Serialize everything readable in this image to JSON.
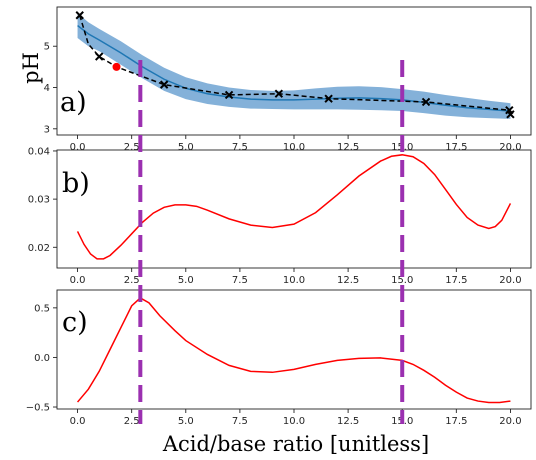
{
  "chart_data": [
    {
      "type": "line",
      "panel_label": "a)",
      "ylabel": "pH",
      "xlim": [
        -0.95,
        20.95
      ],
      "ylim": [
        2.85,
        5.95
      ],
      "xticks": [
        0.0,
        2.5,
        5.0,
        7.5,
        10.0,
        12.5,
        15.0,
        17.5,
        20.0
      ],
      "xtick_labels": [
        "0.0",
        "2.5",
        "5.0",
        "7.5",
        "10.0",
        "12.5",
        "15.0",
        "17.5",
        "20.0"
      ],
      "yticks": [
        3,
        4,
        5
      ],
      "ytick_labels": [
        "3",
        "4",
        "5"
      ],
      "series": [
        {
          "kind": "band",
          "color": "#6ea3d2",
          "x": [
            0.0,
            0.5,
            1,
            2,
            3,
            4,
            5,
            6,
            7,
            8,
            9,
            10,
            11,
            12,
            13,
            14,
            15,
            16,
            17,
            18,
            19,
            20
          ],
          "upper": [
            5.8,
            5.58,
            5.42,
            5.12,
            4.78,
            4.48,
            4.25,
            4.1,
            4.0,
            3.94,
            3.92,
            3.93,
            3.98,
            4.02,
            4.03,
            4.01,
            3.96,
            3.9,
            3.82,
            3.75,
            3.68,
            3.62
          ],
          "lower": [
            5.2,
            5.0,
            4.88,
            4.55,
            4.22,
            3.92,
            3.72,
            3.6,
            3.53,
            3.49,
            3.48,
            3.47,
            3.47,
            3.47,
            3.46,
            3.45,
            3.43,
            3.38,
            3.32,
            3.28,
            3.26,
            3.24
          ]
        },
        {
          "kind": "mean",
          "color": "#1f77b4",
          "x": [
            0.0,
            0.5,
            1,
            2,
            3,
            4,
            5,
            6,
            7,
            8,
            9,
            10,
            11,
            12,
            13,
            14,
            15,
            16,
            17,
            18,
            19,
            20
          ],
          "y": [
            5.5,
            5.3,
            5.15,
            4.84,
            4.5,
            4.2,
            3.98,
            3.85,
            3.77,
            3.72,
            3.7,
            3.7,
            3.72,
            3.74,
            3.75,
            3.73,
            3.7,
            3.64,
            3.57,
            3.51,
            3.47,
            3.43
          ]
        },
        {
          "kind": "observed",
          "color": "#000000",
          "x": [
            0.1,
            0.5,
            1.0,
            1.8,
            4.0,
            7.0,
            9.3,
            11.6,
            16.1,
            19.95,
            20.0
          ],
          "y": [
            5.75,
            5.05,
            4.75,
            4.5,
            4.07,
            3.82,
            3.85,
            3.73,
            3.65,
            3.45,
            3.35
          ],
          "markers": [
            0,
            2,
            4,
            5,
            6,
            7,
            8,
            9,
            10
          ]
        },
        {
          "kind": "highlight",
          "color": "#ff0000",
          "x": [
            1.8
          ],
          "y": [
            4.5
          ]
        }
      ]
    },
    {
      "type": "line",
      "panel_label": "b)",
      "xlim": [
        -0.95,
        20.95
      ],
      "ylim": [
        0.0157,
        0.0402
      ],
      "xticks": [
        0.0,
        2.5,
        5.0,
        7.5,
        10.0,
        12.5,
        15.0,
        17.5,
        20.0
      ],
      "xtick_labels": [
        "0.0",
        "2.5",
        "5.0",
        "7.5",
        "10.0",
        "12.5",
        "15.0",
        "17.5",
        "20.0"
      ],
      "yticks": [
        0.02,
        0.03,
        0.04
      ],
      "ytick_labels": [
        "0.02",
        "0.03",
        "0.04"
      ],
      "series": [
        {
          "color": "#ff0000",
          "x": [
            0.0,
            0.3,
            0.6,
            0.9,
            1.2,
            1.5,
            2.0,
            2.5,
            3.0,
            3.5,
            4.0,
            4.5,
            5.0,
            5.5,
            6.0,
            7.0,
            8.0,
            9.0,
            10.0,
            11.0,
            12.0,
            13.0,
            14.0,
            14.5,
            15.0,
            15.5,
            16.0,
            16.5,
            17.0,
            17.5,
            18.0,
            18.5,
            19.0,
            19.3,
            19.6,
            20.0
          ],
          "y": [
            0.0233,
            0.0206,
            0.0186,
            0.0176,
            0.0176,
            0.0183,
            0.0204,
            0.0228,
            0.0252,
            0.0271,
            0.0283,
            0.0288,
            0.0288,
            0.0285,
            0.0277,
            0.0259,
            0.0246,
            0.0241,
            0.0248,
            0.0272,
            0.0309,
            0.0348,
            0.0379,
            0.0389,
            0.0392,
            0.0388,
            0.0374,
            0.0351,
            0.032,
            0.0289,
            0.0262,
            0.0246,
            0.0239,
            0.0243,
            0.0256,
            0.0291
          ]
        }
      ]
    },
    {
      "type": "line",
      "panel_label": "c)",
      "xlim": [
        -0.95,
        20.95
      ],
      "ylim": [
        -0.52,
        0.68
      ],
      "xticks": [
        0.0,
        2.5,
        5.0,
        7.5,
        10.0,
        12.5,
        15.0,
        17.5,
        20.0
      ],
      "xtick_labels": [
        "0.0",
        "2.5",
        "5.0",
        "7.5",
        "10.0",
        "12.5",
        "15.0",
        "17.5",
        "20.0"
      ],
      "yticks": [
        -0.5,
        0.0,
        0.5
      ],
      "ytick_labels": [
        "−0.5",
        "0.0",
        "0.5"
      ],
      "series": [
        {
          "color": "#ff0000",
          "x": [
            0.0,
            0.5,
            1.0,
            1.5,
            2.0,
            2.5,
            2.9,
            3.3,
            3.8,
            4.5,
            5.0,
            6.0,
            7.0,
            8.0,
            9.0,
            10.0,
            11.0,
            12.0,
            13.0,
            14.0,
            15.0,
            15.5,
            16.0,
            16.5,
            17.0,
            17.5,
            18.0,
            18.5,
            19.0,
            19.5,
            20.0
          ],
          "y": [
            -0.45,
            -0.32,
            -0.14,
            0.08,
            0.3,
            0.52,
            0.6,
            0.55,
            0.42,
            0.27,
            0.17,
            0.03,
            -0.08,
            -0.14,
            -0.15,
            -0.12,
            -0.07,
            -0.03,
            -0.01,
            -0.005,
            -0.03,
            -0.07,
            -0.13,
            -0.2,
            -0.28,
            -0.35,
            -0.41,
            -0.44,
            -0.455,
            -0.455,
            -0.44
          ]
        }
      ]
    }
  ],
  "shared": {
    "xlabel": "Acid/base ratio [unitless]",
    "vlines": [
      {
        "x": 2.9,
        "color": "#9b30b0"
      },
      {
        "x": 15.0,
        "color": "#9b30b0"
      }
    ]
  }
}
